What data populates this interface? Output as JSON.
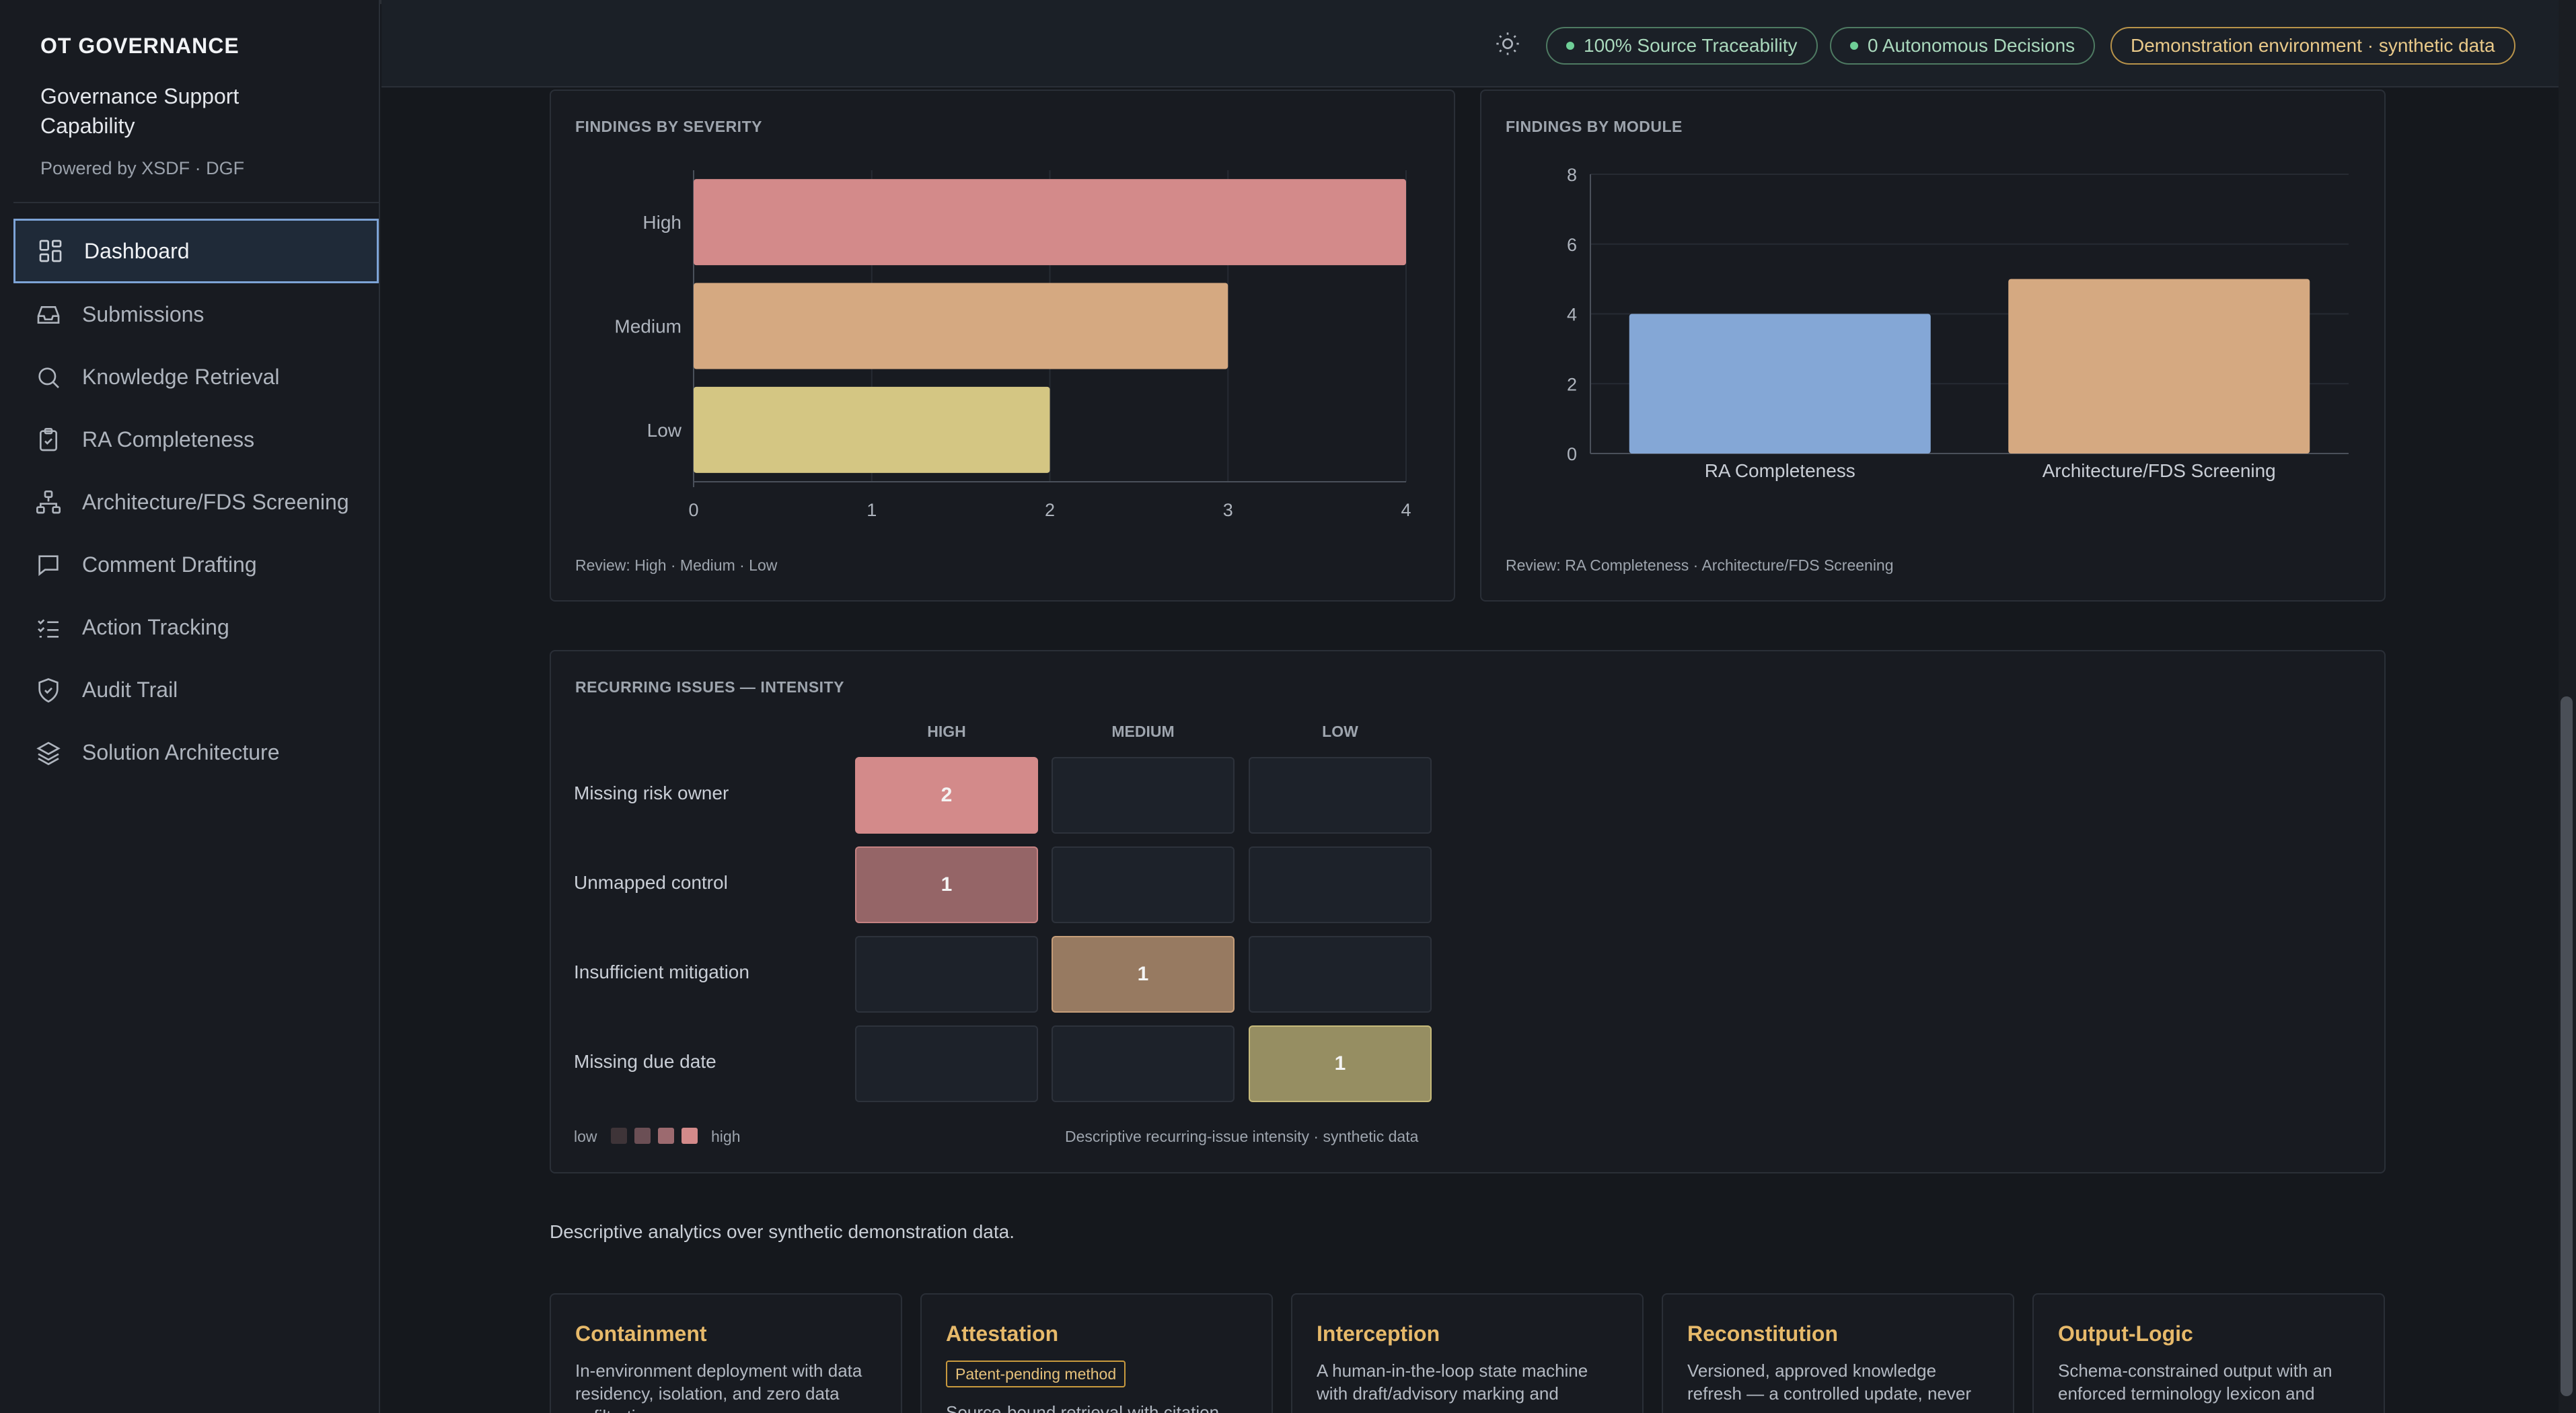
{
  "brand": {
    "title": "OT GOVERNANCE",
    "subtitle": "Governance Support Capability",
    "powered": "Powered by XSDF · DGF"
  },
  "nav": [
    {
      "label": "Dashboard",
      "icon": "grid-icon",
      "active": true
    },
    {
      "label": "Submissions",
      "icon": "inbox-icon"
    },
    {
      "label": "Knowledge Retrieval",
      "icon": "search-icon"
    },
    {
      "label": "RA Completeness",
      "icon": "clipboard-check-icon"
    },
    {
      "label": "Architecture/FDS Screening",
      "icon": "network-icon"
    },
    {
      "label": "Comment Drafting",
      "icon": "comment-icon"
    },
    {
      "label": "Action Tracking",
      "icon": "checklist-icon"
    },
    {
      "label": "Audit Trail",
      "icon": "shield-check-icon"
    },
    {
      "label": "Solution Architecture",
      "icon": "layers-icon"
    }
  ],
  "topbar": {
    "theme_icon": "sun-icon",
    "pill_traceability": "100% Source Traceability",
    "pill_decisions": "0 Autonomous Decisions",
    "pill_environment": "Demonstration environment · synthetic data"
  },
  "colors": {
    "high": "#d38a8a",
    "medium": "#d5a981",
    "low": "#d4c683",
    "blue": "#84a7d6",
    "module_arch": "#d5a981"
  },
  "chart_data": [
    {
      "type": "bar",
      "orientation": "horizontal",
      "title": "FINDINGS BY SEVERITY",
      "categories": [
        "High",
        "Medium",
        "Low"
      ],
      "values": [
        4,
        3,
        2
      ],
      "xlim": [
        0,
        4
      ],
      "ticks": [
        0,
        1,
        2,
        3,
        4
      ],
      "grid": true,
      "footnote": "Review: High · Medium · Low"
    },
    {
      "type": "bar",
      "title": "FINDINGS BY MODULE",
      "categories": [
        "RA Completeness",
        "Architecture/FDS Screening"
      ],
      "values": [
        4,
        5
      ],
      "ylim": [
        0,
        8
      ],
      "ticks": [
        0,
        2,
        4,
        6,
        8
      ],
      "grid": true,
      "footnote": "Review: RA Completeness · Architecture/FDS Screening"
    },
    {
      "type": "heatmap",
      "title": "RECURRING ISSUES — INTENSITY",
      "columns": [
        "HIGH",
        "MEDIUM",
        "LOW"
      ],
      "rows": [
        "Missing risk owner",
        "Unmapped control",
        "Insufficient mitigation",
        "Missing due date"
      ],
      "values": [
        [
          2,
          null,
          null
        ],
        [
          1,
          null,
          null
        ],
        [
          null,
          1,
          null
        ],
        [
          null,
          null,
          1
        ]
      ],
      "legend_low": "low",
      "legend_high": "high",
      "note": "Descriptive recurring-issue intensity · synthetic data"
    }
  ],
  "description": "Descriptive analytics over synthetic demonstration data.",
  "pillars": [
    {
      "title": "Containment",
      "text": "In-environment deployment with data residency, isolation, and zero data exfiltration"
    },
    {
      "title": "Attestation",
      "badge": "Patent-pending method",
      "text": "Source-bound retrieval with citation"
    },
    {
      "title": "Interception",
      "text": "A human-in-the-loop state machine with draft/advisory marking and"
    },
    {
      "title": "Reconstitution",
      "text": "Versioned, approved knowledge refresh — a controlled update, never"
    },
    {
      "title": "Output-Logic",
      "text": "Schema-constrained output with an enforced terminology lexicon and"
    }
  ]
}
